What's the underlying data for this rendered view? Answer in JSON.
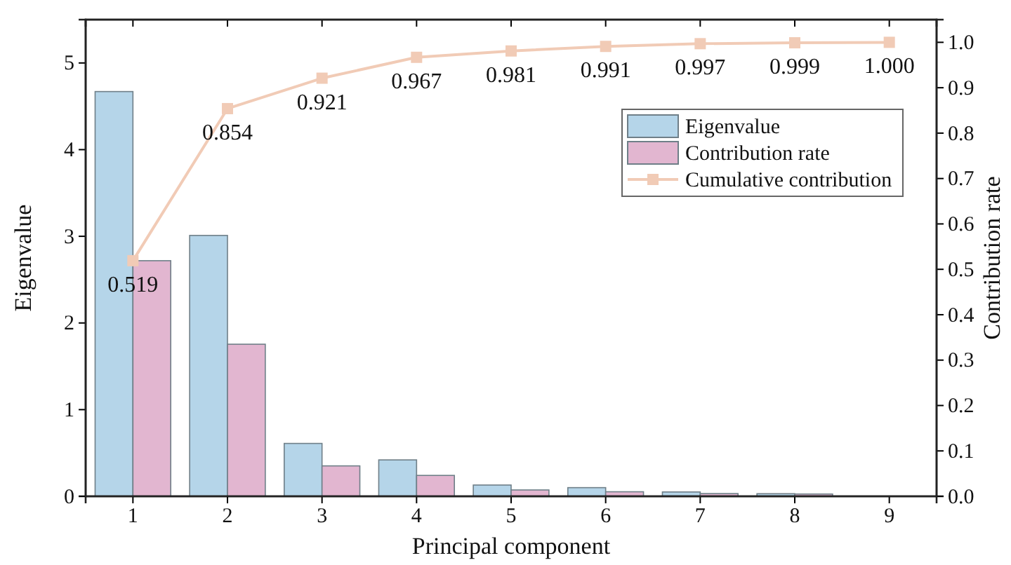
{
  "chart_data": {
    "type": "bar",
    "xlabel": "Principal component",
    "ylabel": "Eigenvalue",
    "y2label": "Contribution rate",
    "categories": [
      "1",
      "2",
      "3",
      "4",
      "5",
      "6",
      "7",
      "8",
      "9"
    ],
    "series": [
      {
        "name": "Eigenvalue",
        "color": "#b5d5e9",
        "values": [
          4.67,
          3.01,
          0.61,
          0.42,
          0.13,
          0.1,
          0.05,
          0.03,
          null
        ]
      },
      {
        "name": "Contribution rate",
        "color": "#e2b6d0",
        "axis": "y2",
        "values": [
          0.519,
          0.335,
          0.067,
          0.046,
          0.014,
          0.01,
          0.006,
          0.005,
          null
        ]
      },
      {
        "name": "Cumulative contribution",
        "type": "line",
        "color": "#f1cbb6",
        "axis": "y2",
        "marker": "square",
        "values": [
          0.519,
          0.854,
          0.921,
          0.967,
          0.981,
          0.991,
          0.997,
          0.999,
          1.0
        ],
        "value_labels": [
          "0.519",
          "0.854",
          "0.921",
          "0.967",
          "0.981",
          "0.991",
          "0.997",
          "0.999",
          "1.000"
        ]
      }
    ],
    "ylim": [
      0,
      5.5
    ],
    "yticks": [
      0,
      1,
      2,
      3,
      4,
      5
    ],
    "y2lim": [
      0,
      1.05
    ],
    "y2ticks": [
      {
        "value": 0,
        "label": "0.0"
      },
      {
        "value": 0.1,
        "label": "0.1"
      },
      {
        "value": 0.2,
        "label": "0.2"
      },
      {
        "value": 0.3,
        "label": "0.3"
      },
      {
        "value": 0.4,
        "label": "0.4"
      },
      {
        "value": 0.5,
        "label": "0.5"
      },
      {
        "value": 0.6,
        "label": "0.6"
      },
      {
        "value": 0.7,
        "label": "0.7"
      },
      {
        "value": 0.8,
        "label": "0.8"
      },
      {
        "value": 0.9,
        "label": "0.9"
      },
      {
        "value": 1,
        "label": "1.0"
      }
    ],
    "legend": "top right",
    "grid": false
  }
}
